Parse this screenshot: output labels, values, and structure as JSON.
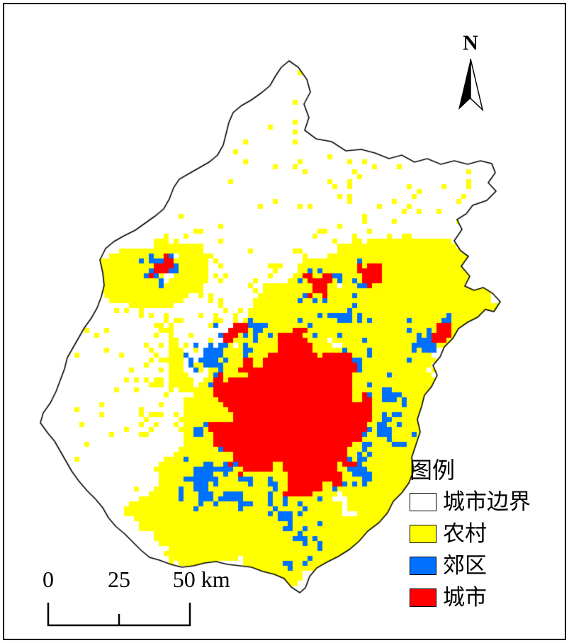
{
  "map": {
    "north_label": "N",
    "colors": {
      "boundary": "#000000",
      "unclassified": "#ffffff",
      "rural": "#ffff00",
      "suburban": "#0070ff",
      "urban": "#ff0000"
    }
  },
  "scalebar": {
    "labels": [
      "0",
      "25",
      "50 km"
    ]
  },
  "legend": {
    "title": "图例",
    "items": [
      {
        "label": "城市边界",
        "color": "#ffffff"
      },
      {
        "label": "农村",
        "color": "#ffff00"
      },
      {
        "label": "郊区",
        "color": "#0070ff"
      },
      {
        "label": "城市",
        "color": "#ff0000"
      }
    ]
  }
}
